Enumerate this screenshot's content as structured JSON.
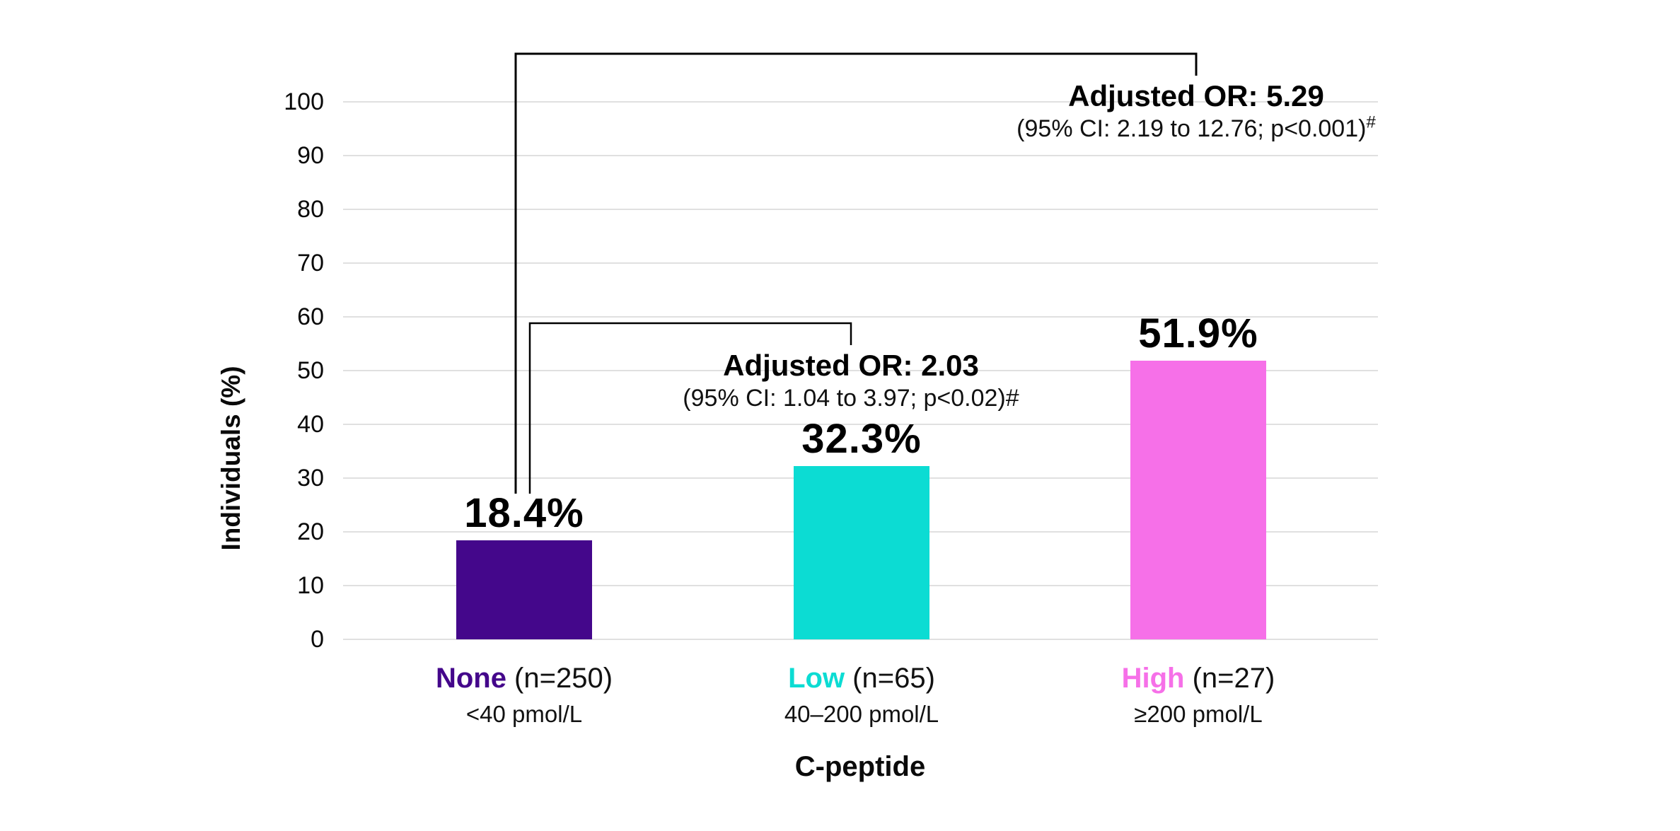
{
  "chart_data": {
    "type": "bar",
    "title": "",
    "xlabel": "C-peptide",
    "ylabel": "Individuals (%)",
    "ylim": [
      0,
      100
    ],
    "ytick_step": 10,
    "yticks": [
      0,
      10,
      20,
      30,
      40,
      50,
      60,
      70,
      80,
      90,
      100
    ],
    "grid": true,
    "legend": false,
    "categories": [
      "None",
      "Low",
      "High"
    ],
    "values": [
      18.4,
      32.3,
      51.9
    ],
    "bars": [
      {
        "id": "none",
        "label": "None",
        "n_label": "(n=250)",
        "range_label": "<40 pmol/L",
        "value": 18.4,
        "value_label": "18.4%",
        "color": "#44078B",
        "label_color": "#44078B"
      },
      {
        "id": "low",
        "label": "Low",
        "n_label": "(n=65)",
        "range_label": "40–200 pmol/L",
        "value": 32.3,
        "value_label": "32.3%",
        "color": "#0CDCD3",
        "label_color": "#0CDCD3"
      },
      {
        "id": "high",
        "label": "High",
        "n_label": "(n=27)",
        "range_label": "≥200 pmol/L",
        "value": 51.9,
        "value_label": "51.9%",
        "color": "#F670E8",
        "label_color": "#F670E8"
      }
    ],
    "annotations": [
      {
        "comparison": "high-vs-none",
        "title": "Adjusted OR: 5.29",
        "detail": "(95% CI: 2.19 to 12.76; p<0.001)",
        "marker": "#"
      },
      {
        "comparison": "low-vs-none",
        "title": "Adjusted OR: 2.03",
        "detail": "(95% CI: 1.04 to 3.97; p<0.02)",
        "marker": "#"
      }
    ]
  }
}
